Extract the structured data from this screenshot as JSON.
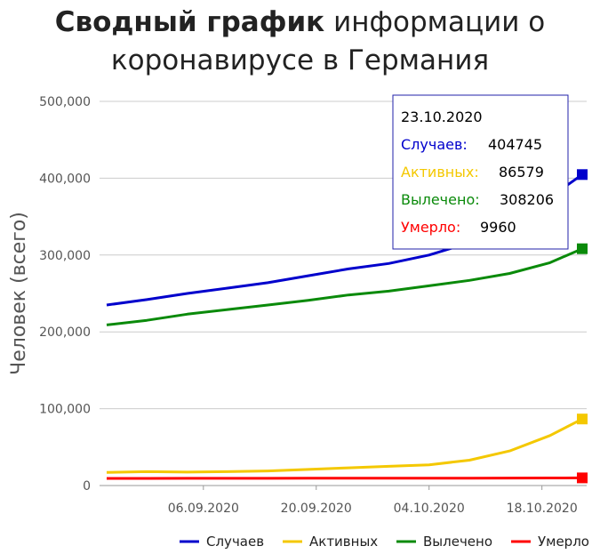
{
  "title": {
    "bold": "Сводный график",
    "rest": "информации о коронавирусе в Германия"
  },
  "colors": {
    "cases": "#0000cc",
    "active": "#f4c800",
    "recovered": "#0a8a0a",
    "deaths": "#ff0000",
    "grid": "#cccccc"
  },
  "chart_data": {
    "type": "line",
    "ylabel": "Человек (всего)",
    "ylim": [
      0,
      500000
    ],
    "yticks": [
      "0",
      "100,000",
      "200,000",
      "300,000",
      "400,000",
      "500,000"
    ],
    "x_start": "2020-08-25",
    "x_end": "2020-10-23",
    "xticks": [
      {
        "date": "2020-09-06",
        "label": "06.09.2020"
      },
      {
        "date": "2020-09-20",
        "label": "20.09.2020"
      },
      {
        "date": "2020-10-04",
        "label": "04.10.2020"
      },
      {
        "date": "2020-10-18",
        "label": "18.10.2020"
      }
    ],
    "series": [
      {
        "key": "cases",
        "name": "Случаев",
        "x": [
          "2020-08-25",
          "2020-08-30",
          "2020-09-04",
          "2020-09-09",
          "2020-09-14",
          "2020-09-19",
          "2020-09-24",
          "2020-09-29",
          "2020-10-04",
          "2020-10-09",
          "2020-10-14",
          "2020-10-19",
          "2020-10-23"
        ],
        "values": [
          235000,
          242000,
          250000,
          257000,
          264000,
          273000,
          282000,
          289000,
          300000,
          316000,
          342000,
          375000,
          404745
        ]
      },
      {
        "key": "active",
        "name": "Активных",
        "x": [
          "2020-08-25",
          "2020-08-30",
          "2020-09-04",
          "2020-09-09",
          "2020-09-14",
          "2020-09-19",
          "2020-09-24",
          "2020-09-29",
          "2020-10-04",
          "2020-10-09",
          "2020-10-14",
          "2020-10-19",
          "2020-10-23"
        ],
        "values": [
          17000,
          18000,
          17500,
          18000,
          19000,
          21000,
          23000,
          25000,
          27000,
          33000,
          45000,
          65000,
          86579
        ]
      },
      {
        "key": "recovered",
        "name": "Вылечено",
        "x": [
          "2020-08-25",
          "2020-08-30",
          "2020-09-04",
          "2020-09-09",
          "2020-09-14",
          "2020-09-19",
          "2020-09-24",
          "2020-09-29",
          "2020-10-04",
          "2020-10-09",
          "2020-10-14",
          "2020-10-19",
          "2020-10-23"
        ],
        "values": [
          209000,
          215000,
          223000,
          229000,
          235000,
          241000,
          248000,
          253000,
          260000,
          267000,
          276000,
          290000,
          308206
        ]
      },
      {
        "key": "deaths",
        "name": "Умерло",
        "x": [
          "2020-08-25",
          "2020-08-30",
          "2020-09-04",
          "2020-09-09",
          "2020-09-14",
          "2020-09-19",
          "2020-09-24",
          "2020-09-29",
          "2020-10-04",
          "2020-10-09",
          "2020-10-14",
          "2020-10-19",
          "2020-10-23"
        ],
        "values": [
          9270,
          9300,
          9330,
          9360,
          9400,
          9440,
          9480,
          9530,
          9580,
          9640,
          9720,
          9830,
          9960
        ]
      }
    ],
    "tooltip": {
      "date": "23.10.2020",
      "rows": [
        {
          "key": "cases",
          "label": "Случаев:",
          "value": "404745"
        },
        {
          "key": "active",
          "label": "Активных:",
          "value": "86579"
        },
        {
          "key": "recovered",
          "label": "Вылечено:",
          "value": "308206"
        },
        {
          "key": "deaths",
          "label": "Умерло:",
          "value": "9960"
        }
      ]
    },
    "legend": {
      "position": "bottom-right",
      "items": [
        {
          "key": "cases",
          "label": "Случаев"
        },
        {
          "key": "active",
          "label": "Активных"
        },
        {
          "key": "recovered",
          "label": "Вылечено"
        },
        {
          "key": "deaths",
          "label": "Умерло"
        }
      ]
    }
  }
}
